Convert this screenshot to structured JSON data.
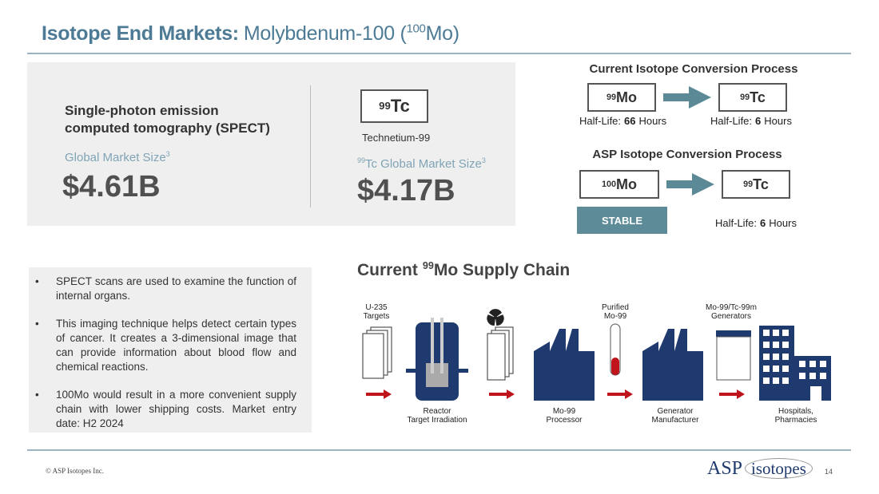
{
  "header": {
    "title_bold": "Isotope End Markets:",
    "title_rest": "Molybdenum-100 (",
    "title_sup": "100",
    "title_end": "Mo)"
  },
  "market_panel": {
    "left": {
      "heading_lines": [
        "Single-photon emission",
        "computed tomography (SPECT)"
      ],
      "label": "Global Market Size",
      "label_sup": "3",
      "value": "$4.61B"
    },
    "right": {
      "symbol_sup": "99",
      "symbol": "Tc",
      "name": "Technetium-99",
      "label_pre_sup": "99",
      "label": "Tc Global Market Size",
      "label_sup": "3",
      "value": "$4.17B"
    }
  },
  "current_process": {
    "title": "Current Isotope Conversion Process",
    "from": {
      "sup": "99",
      "symbol": "Mo",
      "half_life_label": "Half-Life:",
      "half_life_value": "66",
      "half_life_unit": "Hours"
    },
    "to": {
      "sup": "99",
      "symbol": "Tc",
      "half_life_label": "Half-Life:",
      "half_life_value": "6",
      "half_life_unit": "Hours"
    }
  },
  "asp_process": {
    "title": "ASP Isotope Conversion Process",
    "from": {
      "sup": "100",
      "symbol": "Mo",
      "status": "STABLE"
    },
    "to": {
      "sup": "99",
      "symbol": "Tc",
      "half_life_label": "Half-Life:",
      "half_life_value": "6",
      "half_life_unit": "Hours"
    }
  },
  "bullets": [
    "SPECT scans are used to examine the function of internal organs.",
    "This imaging technique helps detect certain types of cancer. It creates a 3-dimensional image that can provide information about blood flow and chemical reactions.",
    "100Mo would result in a more convenient supply chain with lower shipping costs. Market entry date: H2 2024"
  ],
  "supply_chain": {
    "title_pre": "Current",
    "title_sup": "99",
    "title_end": "Mo Supply Chain",
    "top_labels": [
      [
        "U-235",
        "Targets"
      ],
      [
        "Purified",
        "Mo-99"
      ],
      [
        "Mo-99/Tc-99m",
        "Generators"
      ]
    ],
    "bottom_labels": [
      [
        "Reactor",
        "Target Irradiation"
      ],
      [
        "Mo-99",
        "Processor"
      ],
      [
        "Generator",
        "Manufacturer"
      ],
      [
        "Hospitals,",
        "Pharmacies"
      ]
    ]
  },
  "footer": {
    "copyright": "© ASP Isotopes Inc.",
    "logo_main": "ASP",
    "logo_sub": "isotopes",
    "page": "14"
  }
}
